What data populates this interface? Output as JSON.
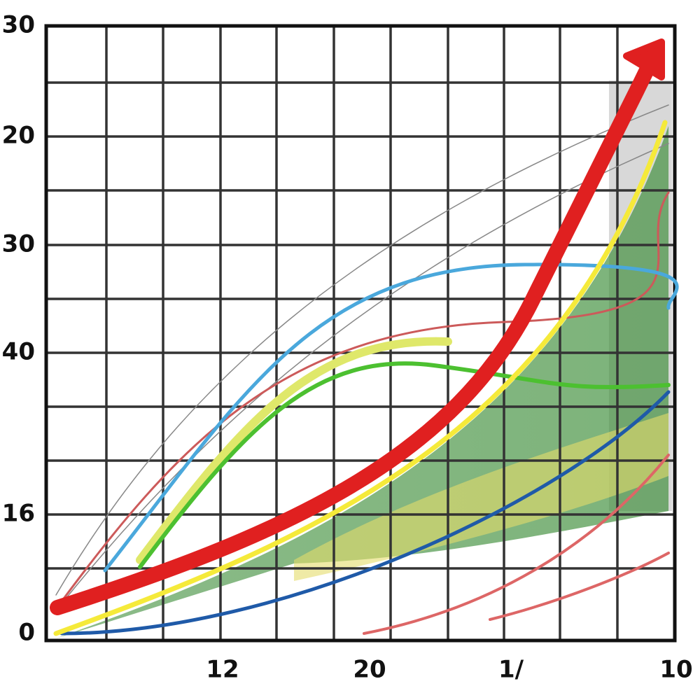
{
  "y_axis_labels": [
    "30",
    "20",
    "30",
    "40",
    "16",
    "0"
  ],
  "x_axis_labels": [
    "12",
    "20",
    "1/",
    "10"
  ]
}
